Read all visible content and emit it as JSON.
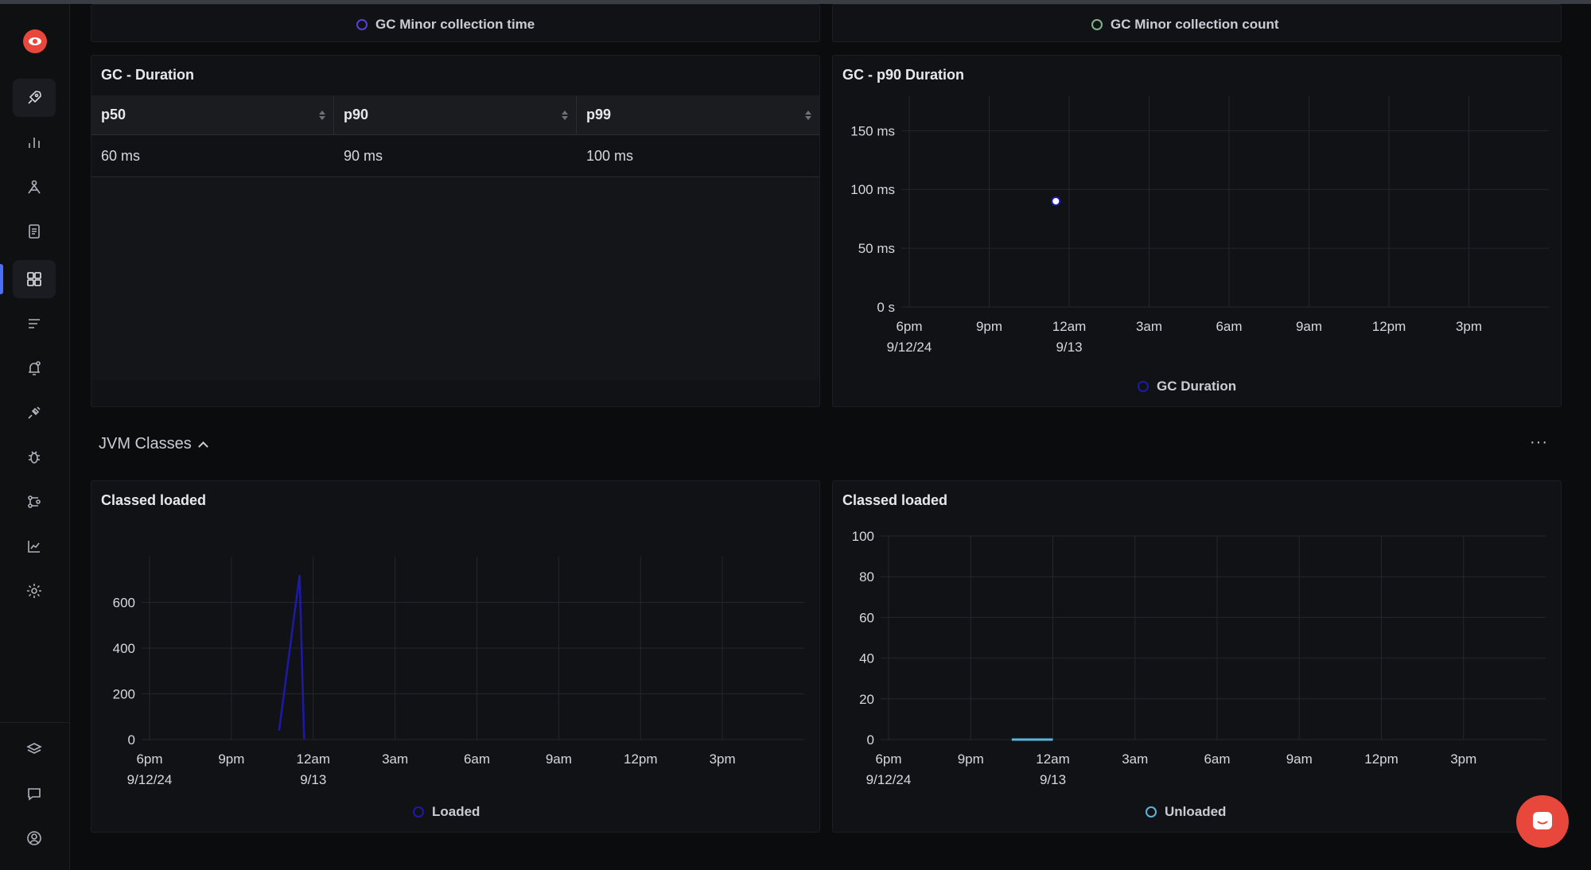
{
  "top_panels": {
    "left_legend": "GC Minor collection time",
    "right_legend": "GC Minor collection count"
  },
  "gc_duration": {
    "title": "GC - Duration",
    "columns": [
      "p50",
      "p90",
      "p99"
    ],
    "rows": [
      [
        "60 ms",
        "90 ms",
        "100 ms"
      ]
    ]
  },
  "gc_p90": {
    "title": "GC - p90 Duration",
    "legend": "GC Duration"
  },
  "section": {
    "title": "JVM Classes",
    "more": "···"
  },
  "classes_loaded": {
    "title": "Classed loaded",
    "legend": "Loaded"
  },
  "classes_unloaded": {
    "title": "Classed loaded",
    "legend": "Unloaded"
  },
  "colors": {
    "accent": "#4e6cf5",
    "brand": "#e8473b",
    "series_loaded": "#1e1aa8",
    "series_unloaded": "#5bb4dc",
    "series_gc_time": "#5a3fd0",
    "series_gc_count": "#7fb58a"
  },
  "sidebar": {
    "items": [
      "rocket-icon",
      "bar-chart-icon",
      "traces-icon",
      "logs-icon",
      "dashboards-icon",
      "list-icon",
      "alerts-icon",
      "integrations-icon",
      "exceptions-icon",
      "pipelines-icon",
      "metrics-icon",
      "settings-icon"
    ],
    "bottom": [
      "layers-icon",
      "chat-icon",
      "user-icon"
    ]
  },
  "chart_data": [
    {
      "type": "scatter",
      "title": "GC - p90 Duration",
      "x_ticks": [
        "6pm\n9/12/24",
        "9pm",
        "12am\n9/13",
        "3am",
        "6am",
        "9am",
        "12pm",
        "3pm"
      ],
      "y_ticks": [
        "0 s",
        "50 ms",
        "100 ms",
        "150 ms"
      ],
      "ylim": [
        0,
        180
      ],
      "series": [
        {
          "name": "GC Duration",
          "points": [
            {
              "x": "2024-09-12 23:30",
              "y": 90
            }
          ]
        }
      ]
    },
    {
      "type": "line",
      "title": "Classed loaded",
      "x_ticks": [
        "6pm\n9/12/24",
        "9pm",
        "12am\n9/13",
        "3am",
        "6am",
        "9am",
        "12pm",
        "3pm"
      ],
      "y_ticks": [
        "0",
        "200",
        "400",
        "600"
      ],
      "ylim": [
        0,
        800
      ],
      "series": [
        {
          "name": "Loaded",
          "points": [
            {
              "x": "2024-09-12 22:45",
              "y": 40
            },
            {
              "x": "2024-09-12 23:30",
              "y": 720
            },
            {
              "x": "2024-09-12 23:40",
              "y": 0
            }
          ]
        }
      ]
    },
    {
      "type": "line",
      "title": "Classed loaded",
      "x_ticks": [
        "6pm\n9/12/24",
        "9pm",
        "12am\n9/13",
        "3am",
        "6am",
        "9am",
        "12pm",
        "3pm"
      ],
      "y_ticks": [
        "0",
        "20",
        "40",
        "60",
        "80",
        "100"
      ],
      "ylim": [
        0,
        100
      ],
      "series": [
        {
          "name": "Unloaded",
          "points": [
            {
              "x": "2024-09-12 22:30",
              "y": 0
            },
            {
              "x": "2024-09-13 00:00",
              "y": 0
            }
          ]
        }
      ]
    }
  ]
}
